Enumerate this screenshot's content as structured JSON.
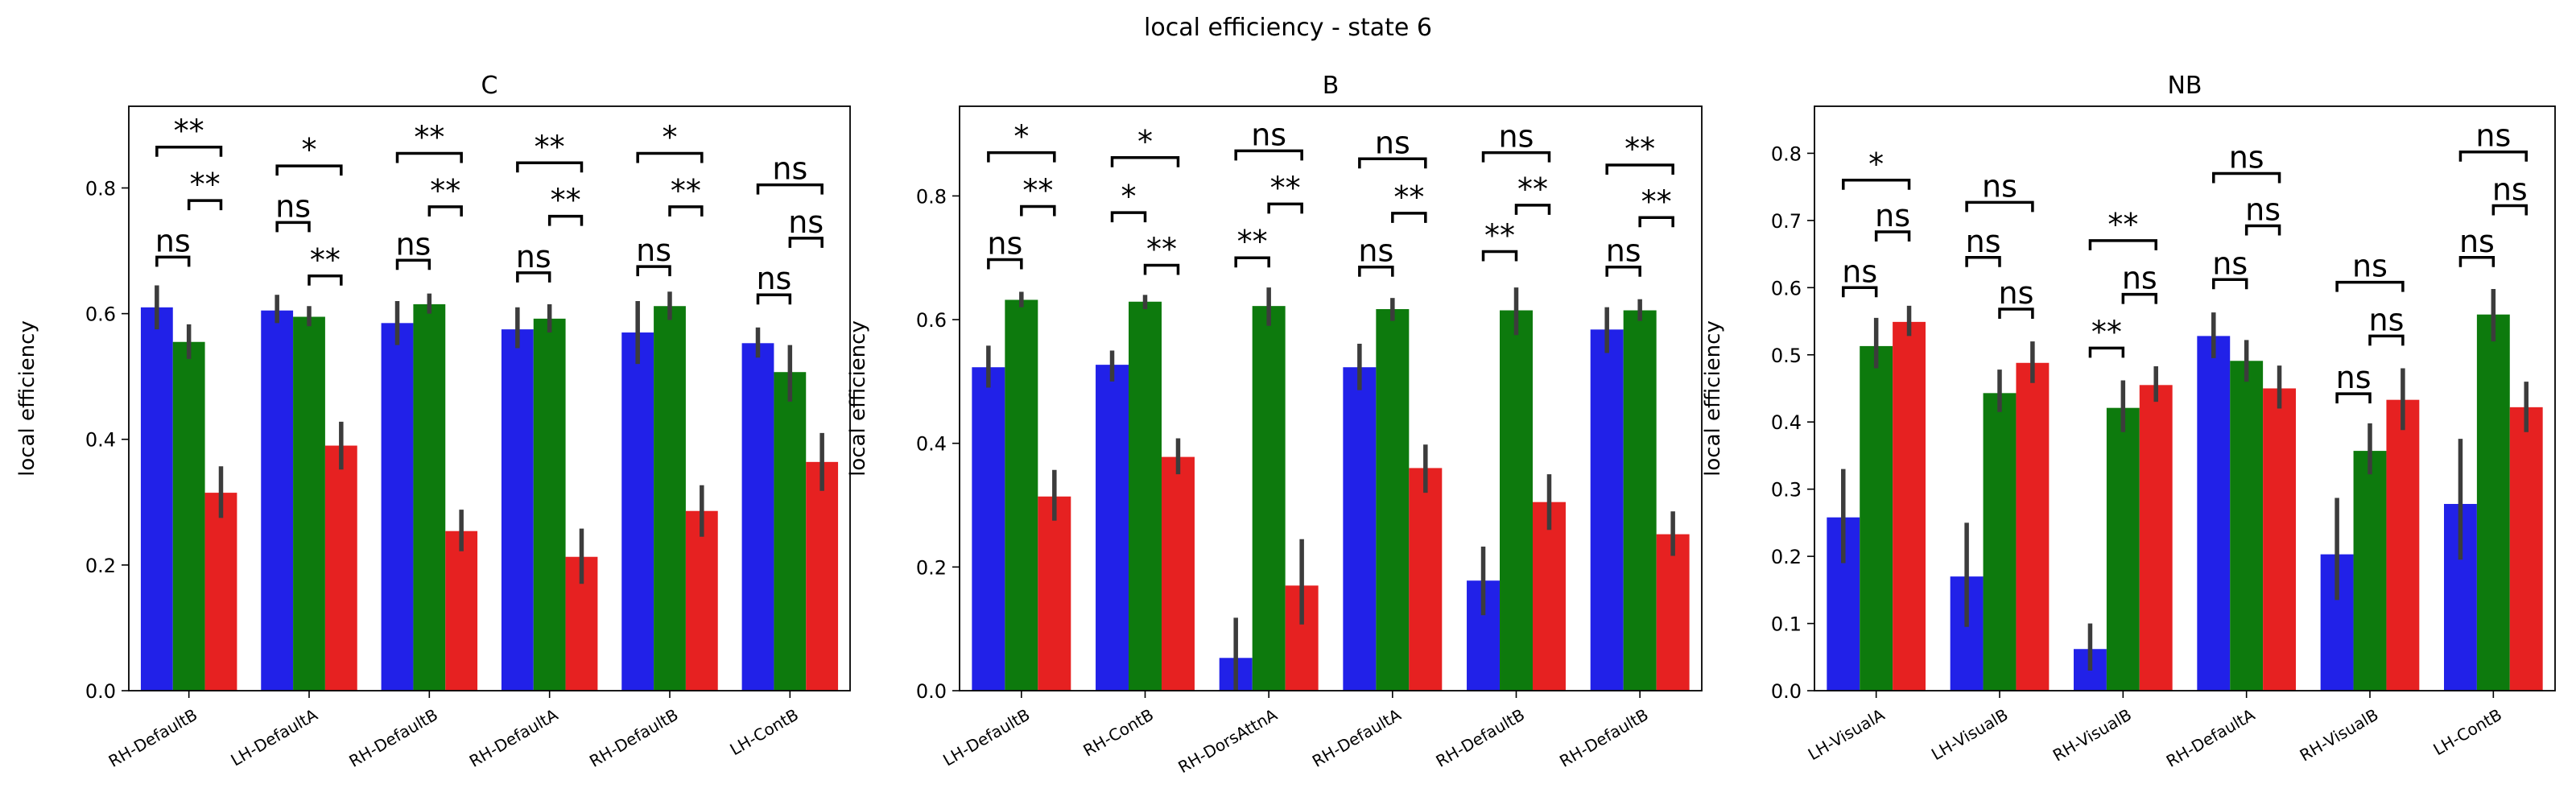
{
  "figure": {
    "suptitle": "local efficiency - state 6"
  },
  "colors": {
    "group1": "#2121e8",
    "group2": "#0d7a0d",
    "group3": "#e62121",
    "errorbar": "#3c3c3c"
  },
  "chart_data": [
    {
      "type": "bar",
      "title": "C",
      "ylabel": "local efficiency",
      "xlabel": "",
      "ylim": [
        0,
        0.93
      ],
      "yticks": [
        0.0,
        0.2,
        0.4,
        0.6,
        0.8
      ],
      "ytick_labels": [
        "0.0",
        "0.2",
        "0.4",
        "0.6",
        "0.8"
      ],
      "categories": [
        "RH-DefaultB",
        "LH-DefaultA",
        "RH-DefaultB",
        "RH-DefaultA",
        "RH-DefaultB",
        "LH-ContB"
      ],
      "series": [
        {
          "values": [
            0.61,
            0.605,
            0.585,
            0.575,
            0.57,
            0.553
          ],
          "err": [
            [
              0.575,
              0.645
            ],
            [
              0.585,
              0.63
            ],
            [
              0.55,
              0.62
            ],
            [
              0.545,
              0.61
            ],
            [
              0.52,
              0.62
            ],
            [
              0.53,
              0.578
            ]
          ]
        },
        {
          "values": [
            0.555,
            0.595,
            0.615,
            0.592,
            0.612,
            0.507
          ],
          "err": [
            [
              0.528,
              0.583
            ],
            [
              0.58,
              0.612
            ],
            [
              0.6,
              0.632
            ],
            [
              0.57,
              0.615
            ],
            [
              0.59,
              0.635
            ],
            [
              0.46,
              0.55
            ]
          ]
        },
        {
          "values": [
            0.315,
            0.39,
            0.254,
            0.213,
            0.286,
            0.364
          ],
          "err": [
            [
              0.275,
              0.357
            ],
            [
              0.352,
              0.428
            ],
            [
              0.222,
              0.288
            ],
            [
              0.17,
              0.258
            ],
            [
              0.245,
              0.327
            ],
            [
              0.318,
              0.41
            ]
          ]
        }
      ],
      "annotations": [
        {
          "cat": 0,
          "a": 0,
          "b": 1,
          "y": 0.69,
          "label": "ns"
        },
        {
          "cat": 0,
          "a": 1,
          "b": 2,
          "y": 0.78,
          "label": "**"
        },
        {
          "cat": 0,
          "a": 0,
          "b": 2,
          "y": 0.865,
          "label": "**"
        },
        {
          "cat": 1,
          "a": 0,
          "b": 1,
          "y": 0.745,
          "label": "ns"
        },
        {
          "cat": 1,
          "a": 1,
          "b": 2,
          "y": 0.66,
          "label": "**"
        },
        {
          "cat": 1,
          "a": 0,
          "b": 2,
          "y": 0.835,
          "label": "*"
        },
        {
          "cat": 2,
          "a": 0,
          "b": 1,
          "y": 0.685,
          "label": "ns"
        },
        {
          "cat": 2,
          "a": 1,
          "b": 2,
          "y": 0.77,
          "label": "**"
        },
        {
          "cat": 2,
          "a": 0,
          "b": 2,
          "y": 0.855,
          "label": "**"
        },
        {
          "cat": 3,
          "a": 0,
          "b": 1,
          "y": 0.665,
          "label": "ns"
        },
        {
          "cat": 3,
          "a": 1,
          "b": 2,
          "y": 0.755,
          "label": "**"
        },
        {
          "cat": 3,
          "a": 0,
          "b": 2,
          "y": 0.84,
          "label": "**"
        },
        {
          "cat": 4,
          "a": 0,
          "b": 1,
          "y": 0.675,
          "label": "ns"
        },
        {
          "cat": 4,
          "a": 1,
          "b": 2,
          "y": 0.77,
          "label": "**"
        },
        {
          "cat": 4,
          "a": 0,
          "b": 2,
          "y": 0.855,
          "label": "*"
        },
        {
          "cat": 5,
          "a": 0,
          "b": 1,
          "y": 0.63,
          "label": "ns"
        },
        {
          "cat": 5,
          "a": 1,
          "b": 2,
          "y": 0.72,
          "label": "ns"
        },
        {
          "cat": 5,
          "a": 0,
          "b": 2,
          "y": 0.805,
          "label": "ns"
        }
      ]
    },
    {
      "type": "bar",
      "title": "B",
      "ylabel": "local efficiency",
      "xlabel": "",
      "ylim": [
        0,
        0.945
      ],
      "yticks": [
        0.0,
        0.2,
        0.4,
        0.6,
        0.8
      ],
      "ytick_labels": [
        "0.0",
        "0.2",
        "0.4",
        "0.6",
        "0.8"
      ],
      "categories": [
        "LH-DefaultB",
        "RH-ContB",
        "RH-DorsAttnA",
        "RH-DefaultA",
        "RH-DefaultB",
        "RH-DefaultB"
      ],
      "series": [
        {
          "values": [
            0.523,
            0.527,
            0.053,
            0.523,
            0.178,
            0.584
          ],
          "err": [
            [
              0.49,
              0.558
            ],
            [
              0.5,
              0.55
            ],
            [
              0.0,
              0.118
            ],
            [
              0.486,
              0.561
            ],
            [
              0.122,
              0.233
            ],
            [
              0.546,
              0.62
            ]
          ]
        },
        {
          "values": [
            0.632,
            0.629,
            0.622,
            0.617,
            0.615,
            0.615
          ],
          "err": [
            [
              0.62,
              0.645
            ],
            [
              0.617,
              0.64
            ],
            [
              0.59,
              0.652
            ],
            [
              0.598,
              0.635
            ],
            [
              0.575,
              0.652
            ],
            [
              0.598,
              0.633
            ]
          ]
        },
        {
          "values": [
            0.314,
            0.378,
            0.17,
            0.36,
            0.305,
            0.253
          ],
          "err": [
            [
              0.275,
              0.357
            ],
            [
              0.35,
              0.408
            ],
            [
              0.107,
              0.245
            ],
            [
              0.32,
              0.398
            ],
            [
              0.26,
              0.35
            ],
            [
              0.218,
              0.29
            ]
          ]
        }
      ],
      "annotations": [
        {
          "cat": 0,
          "a": 0,
          "b": 1,
          "y": 0.697,
          "label": "ns"
        },
        {
          "cat": 0,
          "a": 1,
          "b": 2,
          "y": 0.783,
          "label": "**"
        },
        {
          "cat": 0,
          "a": 0,
          "b": 2,
          "y": 0.87,
          "label": "*"
        },
        {
          "cat": 1,
          "a": 0,
          "b": 1,
          "y": 0.773,
          "label": "*"
        },
        {
          "cat": 1,
          "a": 1,
          "b": 2,
          "y": 0.688,
          "label": "**"
        },
        {
          "cat": 1,
          "a": 0,
          "b": 2,
          "y": 0.862,
          "label": "*"
        },
        {
          "cat": 2,
          "a": 0,
          "b": 1,
          "y": 0.7,
          "label": "**"
        },
        {
          "cat": 2,
          "a": 1,
          "b": 2,
          "y": 0.787,
          "label": "**"
        },
        {
          "cat": 2,
          "a": 0,
          "b": 2,
          "y": 0.873,
          "label": "ns"
        },
        {
          "cat": 3,
          "a": 0,
          "b": 1,
          "y": 0.685,
          "label": "ns"
        },
        {
          "cat": 3,
          "a": 1,
          "b": 2,
          "y": 0.772,
          "label": "**"
        },
        {
          "cat": 3,
          "a": 0,
          "b": 2,
          "y": 0.86,
          "label": "ns"
        },
        {
          "cat": 4,
          "a": 0,
          "b": 1,
          "y": 0.71,
          "label": "**"
        },
        {
          "cat": 4,
          "a": 1,
          "b": 2,
          "y": 0.785,
          "label": "**"
        },
        {
          "cat": 4,
          "a": 0,
          "b": 2,
          "y": 0.87,
          "label": "ns"
        },
        {
          "cat": 5,
          "a": 0,
          "b": 1,
          "y": 0.685,
          "label": "ns"
        },
        {
          "cat": 5,
          "a": 1,
          "b": 2,
          "y": 0.765,
          "label": "**"
        },
        {
          "cat": 5,
          "a": 0,
          "b": 2,
          "y": 0.85,
          "label": "**"
        }
      ]
    },
    {
      "type": "bar",
      "title": "NB",
      "ylabel": "local efficiency",
      "xlabel": "",
      "ylim": [
        0,
        0.87
      ],
      "yticks": [
        0.0,
        0.1,
        0.2,
        0.3,
        0.4,
        0.5,
        0.6,
        0.7,
        0.8
      ],
      "ytick_labels": [
        "0.0",
        "0.1",
        "0.2",
        "0.3",
        "0.4",
        "0.5",
        "0.6",
        "0.7",
        "0.8"
      ],
      "categories": [
        "LH-VisualA",
        "LH-VisualB",
        "RH-VisualB",
        "RH-DefaultA",
        "RH-VisualB",
        "LH-ContB"
      ],
      "series": [
        {
          "values": [
            0.258,
            0.17,
            0.062,
            0.528,
            0.203,
            0.278
          ],
          "err": [
            [
              0.19,
              0.33
            ],
            [
              0.095,
              0.25
            ],
            [
              0.03,
              0.1
            ],
            [
              0.495,
              0.563
            ],
            [
              0.135,
              0.287
            ],
            [
              0.195,
              0.375
            ]
          ]
        },
        {
          "values": [
            0.513,
            0.443,
            0.421,
            0.491,
            0.357,
            0.56
          ],
          "err": [
            [
              0.48,
              0.555
            ],
            [
              0.415,
              0.478
            ],
            [
              0.385,
              0.462
            ],
            [
              0.46,
              0.522
            ],
            [
              0.322,
              0.398
            ],
            [
              0.52,
              0.598
            ]
          ]
        },
        {
          "values": [
            0.549,
            0.488,
            0.455,
            0.45,
            0.433,
            0.422
          ],
          "err": [
            [
              0.528,
              0.573
            ],
            [
              0.458,
              0.52
            ],
            [
              0.43,
              0.483
            ],
            [
              0.42,
              0.484
            ],
            [
              0.388,
              0.48
            ],
            [
              0.385,
              0.46
            ]
          ]
        }
      ],
      "annotations": [
        {
          "cat": 0,
          "a": 0,
          "b": 1,
          "y": 0.6,
          "label": "ns"
        },
        {
          "cat": 0,
          "a": 1,
          "b": 2,
          "y": 0.683,
          "label": "ns"
        },
        {
          "cat": 0,
          "a": 0,
          "b": 2,
          "y": 0.76,
          "label": "*"
        },
        {
          "cat": 1,
          "a": 0,
          "b": 1,
          "y": 0.645,
          "label": "ns"
        },
        {
          "cat": 1,
          "a": 1,
          "b": 2,
          "y": 0.568,
          "label": "ns"
        },
        {
          "cat": 1,
          "a": 0,
          "b": 2,
          "y": 0.727,
          "label": "ns"
        },
        {
          "cat": 2,
          "a": 0,
          "b": 1,
          "y": 0.51,
          "label": "**"
        },
        {
          "cat": 2,
          "a": 1,
          "b": 2,
          "y": 0.59,
          "label": "ns"
        },
        {
          "cat": 2,
          "a": 0,
          "b": 2,
          "y": 0.67,
          "label": "**"
        },
        {
          "cat": 3,
          "a": 0,
          "b": 1,
          "y": 0.612,
          "label": "ns"
        },
        {
          "cat": 3,
          "a": 1,
          "b": 2,
          "y": 0.692,
          "label": "ns"
        },
        {
          "cat": 3,
          "a": 0,
          "b": 2,
          "y": 0.77,
          "label": "ns"
        },
        {
          "cat": 4,
          "a": 0,
          "b": 1,
          "y": 0.442,
          "label": "ns"
        },
        {
          "cat": 4,
          "a": 1,
          "b": 2,
          "y": 0.528,
          "label": "ns"
        },
        {
          "cat": 4,
          "a": 0,
          "b": 2,
          "y": 0.608,
          "label": "ns"
        },
        {
          "cat": 5,
          "a": 0,
          "b": 1,
          "y": 0.645,
          "label": "ns"
        },
        {
          "cat": 5,
          "a": 1,
          "b": 2,
          "y": 0.722,
          "label": "ns"
        },
        {
          "cat": 5,
          "a": 0,
          "b": 2,
          "y": 0.802,
          "label": "ns"
        }
      ]
    }
  ]
}
